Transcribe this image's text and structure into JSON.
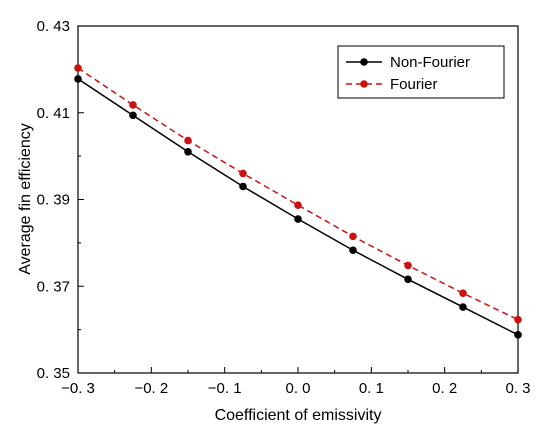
{
  "chart_data": {
    "type": "line",
    "xlabel": "Coefficient of emissivity",
    "ylabel": "Average fin efficiency",
    "xlim": [
      -0.3,
      0.3
    ],
    "ylim": [
      0.35,
      0.43
    ],
    "xticks": [
      -0.3,
      -0.2,
      -0.1,
      0.0,
      0.1,
      0.2,
      0.3
    ],
    "xtick_labels": [
      "−0. 3",
      "−0. 2",
      "−0. 1",
      "0. 0",
      "0. 1",
      "0. 2",
      "0. 3"
    ],
    "yticks": [
      0.35,
      0.37,
      0.39,
      0.41,
      0.43
    ],
    "ytick_labels": [
      "0. 35",
      "0. 37",
      "0. 39",
      "0. 41",
      "0. 43"
    ],
    "x": [
      -0.3,
      -0.225,
      -0.15,
      -0.075,
      0.0,
      0.075,
      0.15,
      0.225,
      0.3
    ],
    "series": [
      {
        "name": "Non-Fourier",
        "values": [
          0.4178,
          0.4094,
          0.401,
          0.393,
          0.3855,
          0.3783,
          0.3716,
          0.3652,
          0.3588
        ],
        "color": "#000000",
        "line_style": "solid",
        "marker": "circle"
      },
      {
        "name": "Fourier",
        "values": [
          0.4203,
          0.4118,
          0.4036,
          0.396,
          0.3887,
          0.3815,
          0.3748,
          0.3684,
          0.3623
        ],
        "color": "#cc1111",
        "line_style": "dashed",
        "marker": "circle"
      }
    ],
    "grid": false,
    "legend_position": "top-right"
  }
}
